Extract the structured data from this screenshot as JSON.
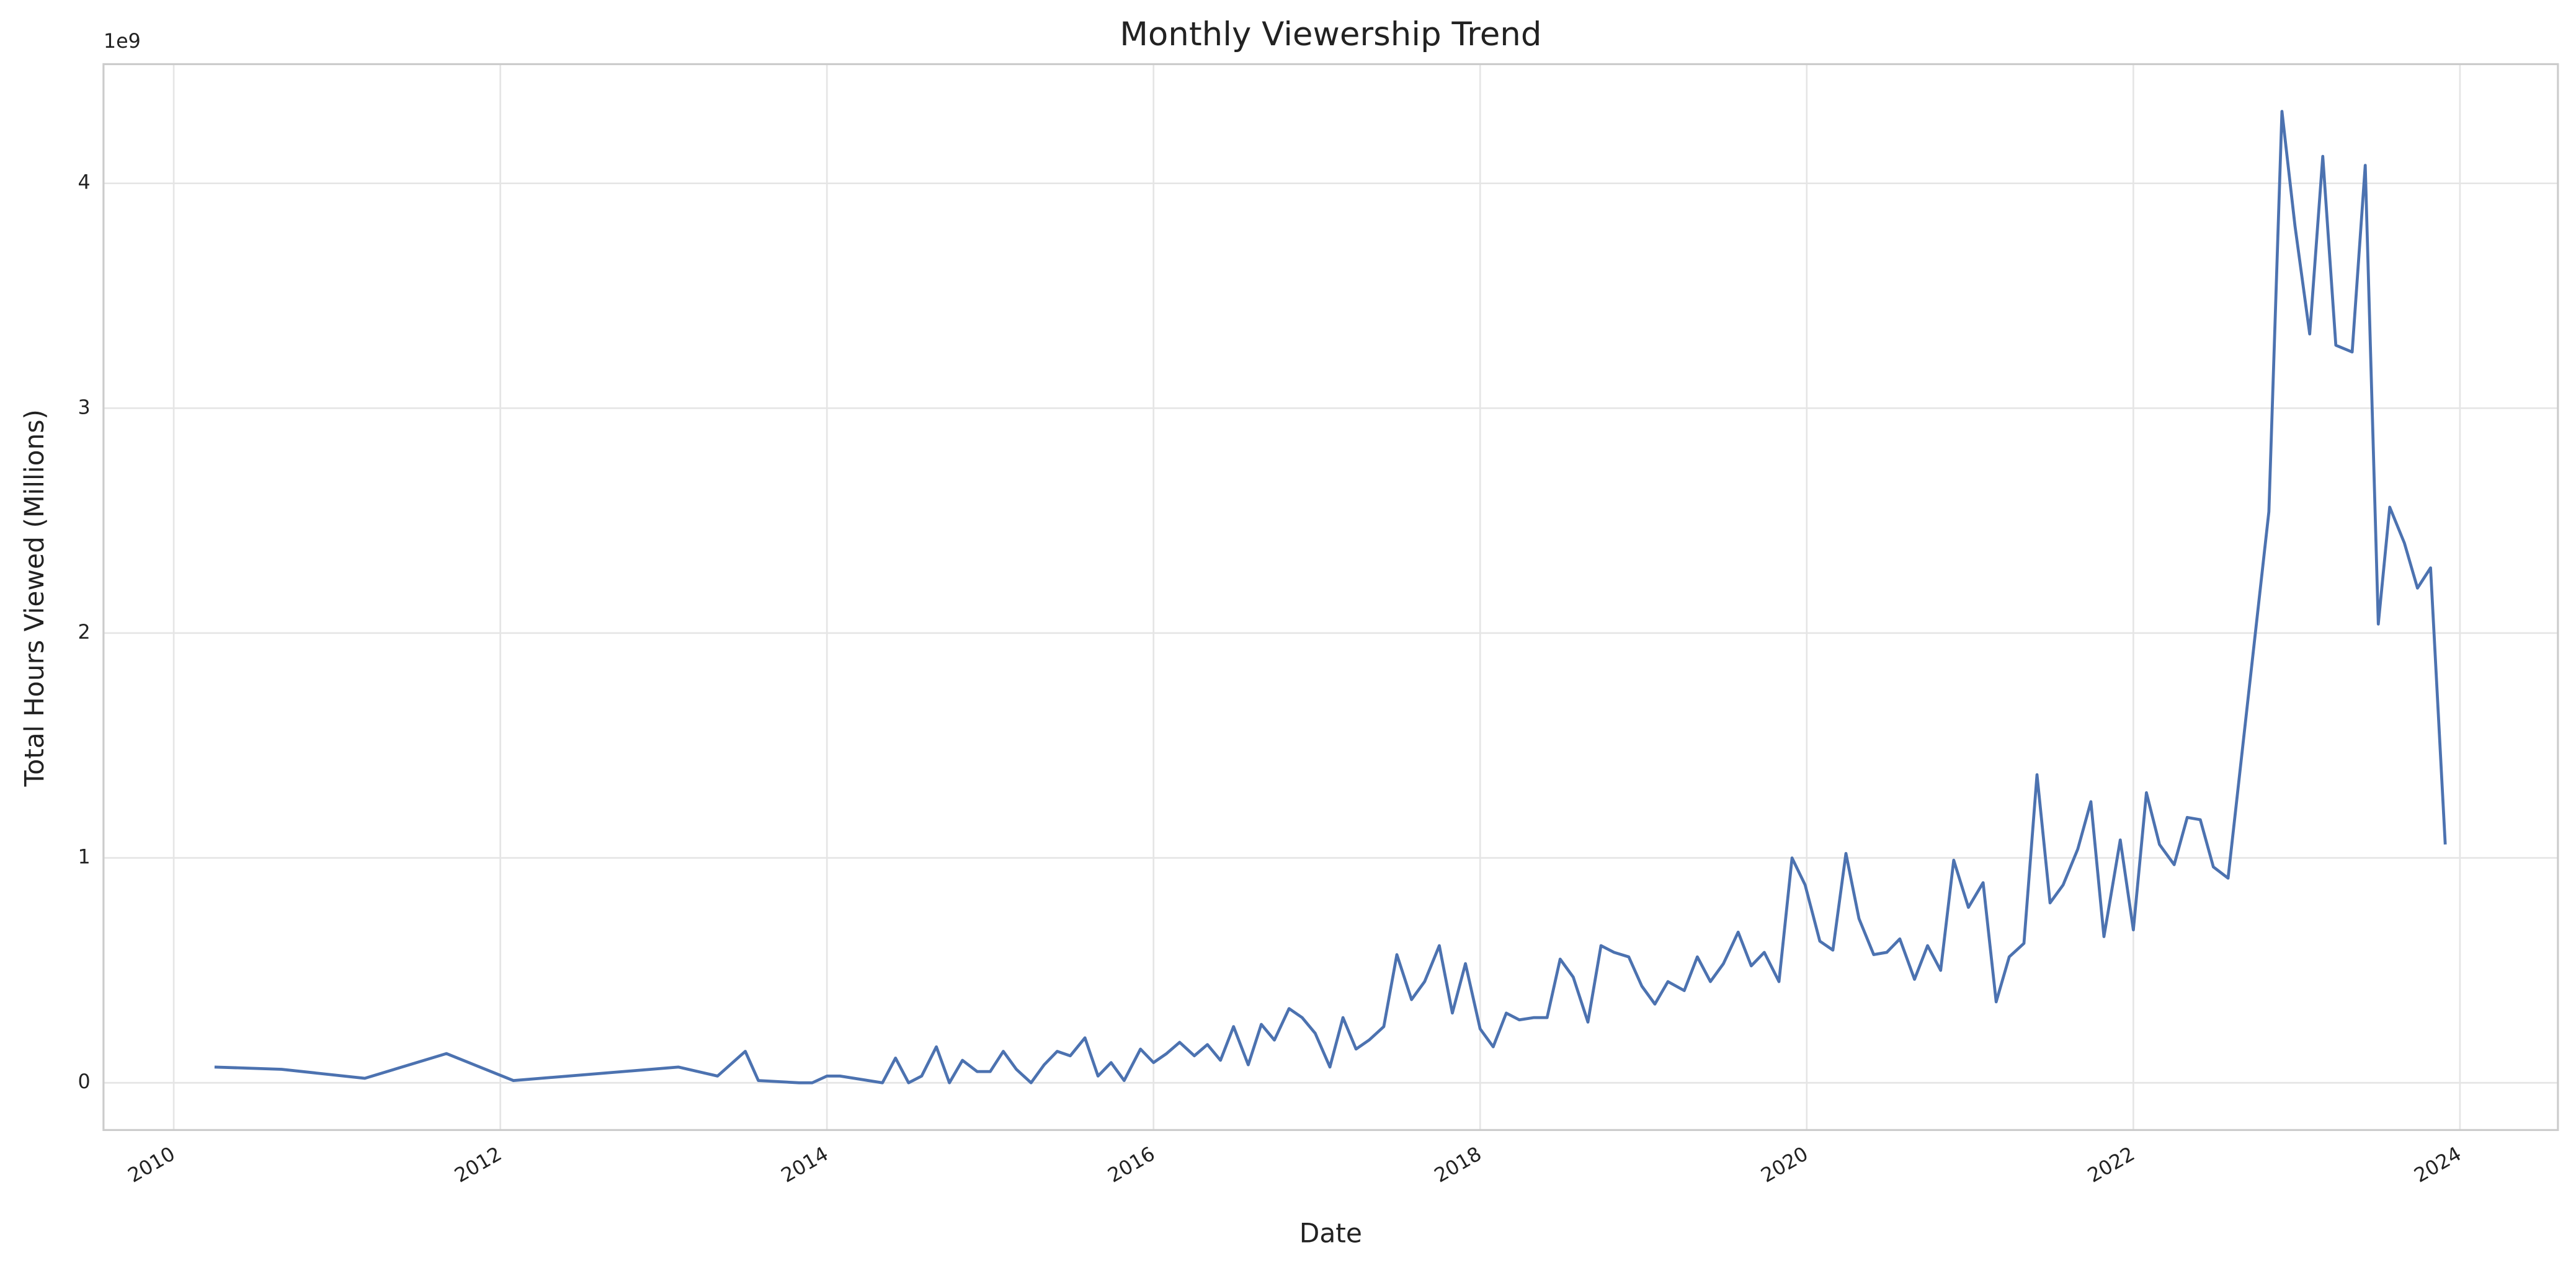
{
  "chart_data": {
    "type": "line",
    "title": "Monthly Viewership Trend",
    "x_label": "Date",
    "y_label": "Total Hours Viewed (Millions)",
    "y_offset_label": "1e9",
    "color": "#4c72b0",
    "grid": true,
    "xlim": [
      2009.57,
      2024.6
    ],
    "xticks": [
      2010,
      2012,
      2014,
      2016,
      2018,
      2020,
      2022,
      2024
    ],
    "ylim": [
      -0.21,
      4.53
    ],
    "yticks": [
      0,
      1,
      2,
      3,
      4
    ],
    "x": [
      2010.25,
      2010.66,
      2011.17,
      2011.67,
      2012.08,
      2013.09,
      2013.33,
      2013.5,
      2013.58,
      2013.83,
      2013.91,
      2014.0,
      2014.08,
      2014.34,
      2014.42,
      2014.5,
      2014.58,
      2014.67,
      2014.75,
      2014.83,
      2014.92,
      2015.0,
      2015.08,
      2015.16,
      2015.25,
      2015.33,
      2015.41,
      2015.49,
      2015.58,
      2015.66,
      2015.74,
      2015.82,
      2015.92,
      2016.0,
      2016.08,
      2016.16,
      2016.25,
      2016.33,
      2016.41,
      2016.49,
      2016.58,
      2016.66,
      2016.74,
      2016.83,
      2016.91,
      2016.99,
      2017.08,
      2017.16,
      2017.24,
      2017.32,
      2017.41,
      2017.49,
      2017.58,
      2017.66,
      2017.75,
      2017.83,
      2017.91,
      2018.0,
      2018.08,
      2018.16,
      2018.24,
      2018.33,
      2018.41,
      2018.49,
      2018.57,
      2018.66,
      2018.74,
      2018.82,
      2018.91,
      2018.99,
      2019.07,
      2019.15,
      2019.25,
      2019.33,
      2019.41,
      2019.49,
      2019.58,
      2019.66,
      2019.74,
      2019.83,
      2019.91,
      2019.99,
      2020.08,
      2020.16,
      2020.24,
      2020.32,
      2020.41,
      2020.49,
      2020.57,
      2020.66,
      2020.74,
      2020.82,
      2020.9,
      2020.99,
      2021.08,
      2021.16,
      2021.24,
      2021.33,
      2021.41,
      2021.49,
      2021.57,
      2021.66,
      2021.74,
      2021.82,
      2021.92,
      2022.0,
      2022.08,
      2022.16,
      2022.25,
      2022.33,
      2022.41,
      2022.49,
      2022.58,
      2022.83,
      2022.91,
      2022.99,
      2023.08,
      2023.16,
      2023.24,
      2023.34,
      2023.42,
      2023.5,
      2023.57,
      2023.66,
      2023.74,
      2023.82,
      2023.91
    ],
    "values": [
      0.07,
      0.06,
      0.02,
      0.13,
      0.01,
      0.07,
      0.03,
      0.14,
      0.01,
      0.0,
      0.0,
      0.03,
      0.03,
      0.0,
      0.11,
      0.0,
      0.03,
      0.16,
      0.0,
      0.1,
      0.05,
      0.05,
      0.14,
      0.06,
      0.0,
      0.08,
      0.14,
      0.12,
      0.2,
      0.03,
      0.09,
      0.01,
      0.15,
      0.09,
      0.13,
      0.18,
      0.12,
      0.17,
      0.1,
      0.25,
      0.08,
      0.26,
      0.19,
      0.33,
      0.29,
      0.22,
      0.07,
      0.29,
      0.15,
      0.19,
      0.25,
      0.57,
      0.37,
      0.45,
      0.61,
      0.31,
      0.53,
      0.24,
      0.16,
      0.31,
      0.28,
      0.29,
      0.29,
      0.55,
      0.47,
      0.27,
      0.61,
      0.58,
      0.56,
      0.43,
      0.35,
      0.45,
      0.41,
      0.56,
      0.45,
      0.53,
      0.67,
      0.52,
      0.58,
      0.45,
      1.0,
      0.88,
      0.63,
      0.59,
      1.02,
      0.73,
      0.57,
      0.58,
      0.64,
      0.46,
      0.61,
      0.5,
      0.99,
      0.78,
      0.89,
      0.36,
      0.56,
      0.62,
      1.37,
      0.8,
      0.88,
      1.04,
      1.25,
      0.65,
      1.08,
      0.68,
      1.29,
      1.06,
      0.97,
      1.18,
      1.17,
      0.96,
      0.91,
      2.54,
      4.32,
      3.81,
      3.33,
      4.12,
      3.28,
      3.25,
      4.08,
      2.04,
      2.56,
      2.4,
      2.2,
      2.29,
      1.06
    ]
  }
}
